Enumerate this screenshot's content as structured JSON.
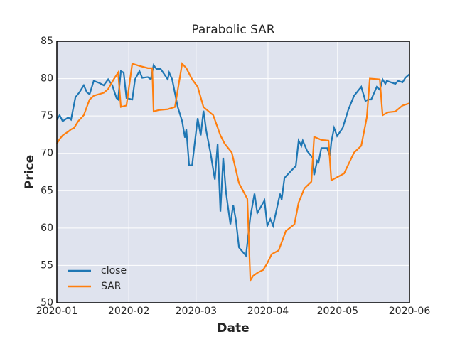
{
  "chart_data": {
    "type": "line",
    "title": "Parabolic SAR",
    "x_label": "Date",
    "y_label": "Price",
    "xlim": [
      0,
      152
    ],
    "xticks": [
      {
        "value": 0,
        "label": "2020-01"
      },
      {
        "value": 31,
        "label": "2020-02"
      },
      {
        "value": 60,
        "label": "2020-03"
      },
      {
        "value": 91,
        "label": "2020-04"
      },
      {
        "value": 121,
        "label": "2020-05"
      },
      {
        "value": 152,
        "label": "2020-06"
      }
    ],
    "ylim": [
      50,
      85
    ],
    "yticks": [
      50,
      55,
      60,
      65,
      70,
      75,
      80,
      85
    ],
    "grid": true,
    "legend": "lower left",
    "series": [
      {
        "name": "close",
        "color": "#1f77b4",
        "x": [
          0,
          1.2,
          2.5,
          4.9,
          6.1,
          8,
          9.8,
          11.6,
          12.9,
          14.1,
          15.9,
          18.4,
          20.2,
          22.1,
          23.9,
          25.7,
          26.4,
          27.6,
          28.8,
          30,
          32.5,
          33.7,
          35.6,
          36.8,
          39.2,
          40.5,
          41.7,
          42.9,
          44.7,
          47.8,
          48.4,
          49.7,
          52.1,
          54,
          55.2,
          55.8,
          57,
          58.3,
          60.7,
          62,
          63.2,
          64.4,
          66.2,
          68.1,
          69.3,
          70.5,
          71.7,
          72.9,
          74.8,
          76,
          77.2,
          78.5,
          81.5,
          83.4,
          85.2,
          86.4,
          89.5,
          90.7,
          92,
          93.2,
          96.2,
          96.9,
          98.1,
          101.1,
          103,
          104.2,
          105.4,
          106,
          107.9,
          110.3,
          110.9,
          112.2,
          112.8,
          114,
          116.5,
          117.7,
          118.3,
          119.5,
          120.8,
          123.2,
          125.6,
          128.1,
          131.2,
          133,
          134.2,
          135.5,
          137.9,
          139.2,
          140.4,
          141.6,
          142.2,
          145.9,
          147.1,
          149,
          150.2,
          152
        ],
        "values": [
          74.5,
          75.1,
          74.3,
          74.8,
          74.5,
          77.5,
          78.2,
          79.1,
          78.2,
          77.9,
          79.7,
          79.4,
          79.1,
          79.9,
          79.1,
          77.4,
          77.2,
          81.0,
          80.8,
          77.4,
          77.2,
          79.9,
          81.0,
          80.1,
          80.2,
          79.9,
          81.8,
          81.3,
          81.3,
          79.9,
          80.8,
          79.9,
          76.2,
          74.3,
          72.1,
          73.2,
          68.4,
          68.4,
          74.7,
          72.4,
          75.7,
          73.0,
          70.1,
          66.5,
          71.3,
          62.2,
          69.4,
          64.8,
          60.5,
          63.1,
          61.0,
          57.4,
          56.3,
          61.5,
          64.6,
          62.0,
          63.7,
          60.3,
          61.2,
          60.3,
          64.6,
          63.8,
          66.7,
          67.7,
          68.3,
          71.7,
          71.0,
          71.7,
          70.3,
          69.4,
          67.1,
          69.0,
          68.8,
          70.7,
          70.7,
          69.6,
          71.5,
          73.4,
          72.3,
          73.4,
          75.8,
          77.7,
          78.9,
          77.0,
          77.2,
          77.2,
          78.9,
          78.5,
          79.9,
          79.3,
          79.7,
          79.3,
          79.7,
          79.5,
          80.1,
          80.6
        ]
      },
      {
        "name": "SAR",
        "color": "#ff7f0e",
        "x": [
          0,
          1.2,
          2.5,
          4.9,
          6.1,
          7.4,
          9.2,
          11.6,
          14.1,
          15.9,
          20.2,
          22.1,
          24.5,
          26.4,
          27.6,
          30,
          32.5,
          35.6,
          39.2,
          41.1,
          41.7,
          44.1,
          47.8,
          50.9,
          54,
          55.8,
          58.3,
          60.7,
          63.2,
          67.4,
          70.5,
          72.3,
          75.4,
          78.5,
          80.9,
          82.1,
          83.4,
          84.6,
          86.4,
          88.9,
          90.7,
          92.6,
          95.6,
          98.7,
          102.4,
          104.2,
          106.7,
          109.7,
          110.9,
          114,
          117.1,
          118.3,
          120.8,
          123.8,
          128.1,
          131.2,
          133.6,
          134.9,
          139.2,
          140.4,
          142.8,
          145.9,
          149,
          152
        ],
        "values": [
          71.3,
          71.9,
          72.4,
          72.9,
          73.2,
          73.4,
          74.3,
          75.1,
          77.2,
          77.7,
          78.1,
          78.6,
          79.9,
          80.8,
          76.2,
          76.4,
          82.0,
          81.7,
          81.4,
          81.4,
          75.6,
          75.8,
          75.9,
          76.2,
          82.0,
          81.4,
          79.9,
          78.9,
          76.2,
          75.1,
          72.4,
          71.3,
          70.1,
          66.0,
          64.6,
          63.9,
          53.0,
          53.6,
          54.0,
          54.4,
          55.3,
          56.5,
          57.0,
          59.6,
          60.5,
          63.4,
          65.3,
          66.2,
          72.2,
          71.8,
          71.7,
          66.4,
          66.8,
          67.3,
          70.1,
          71.0,
          74.8,
          80.0,
          79.9,
          75.1,
          75.5,
          75.6,
          76.4,
          76.7
        ]
      }
    ]
  }
}
